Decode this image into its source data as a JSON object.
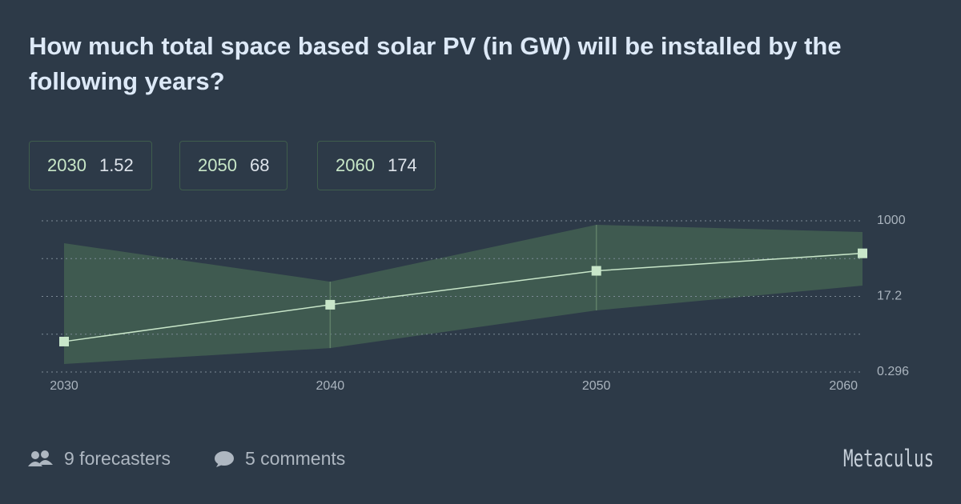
{
  "header": {
    "title": "How much total space based solar PV (in GW) will be installed by the following years?"
  },
  "chart_data": {
    "type": "line",
    "x": [
      2030,
      2040,
      2050,
      2060
    ],
    "values": [
      1.52,
      11,
      68,
      174
    ],
    "lower": [
      0.455,
      1.07,
      8.1,
      30.7
    ],
    "upper": [
      300,
      38,
      807,
      548
    ],
    "color": "#c8e6c9",
    "band_color": "#3f5a50",
    "xlim": [
      2030,
      2060
    ],
    "xticks": [
      2030,
      2040,
      2050,
      2060
    ],
    "ylim": [
      0.296,
      1000
    ],
    "yticks": [
      0.296,
      17.2,
      1000
    ],
    "log_scale": true,
    "grid": true
  },
  "footer": {
    "forecasters": "9 forecasters",
    "comments": "5 comments",
    "logo": "Metaculus"
  }
}
